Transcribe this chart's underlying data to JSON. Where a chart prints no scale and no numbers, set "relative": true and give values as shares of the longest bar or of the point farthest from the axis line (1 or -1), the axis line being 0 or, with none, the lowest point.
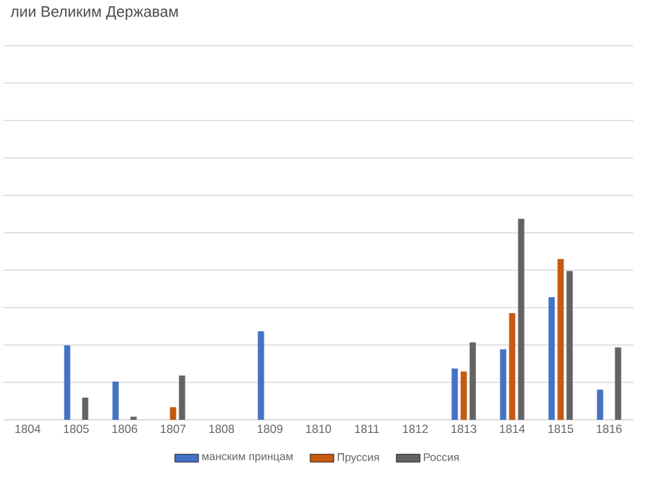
{
  "chart_data": {
    "type": "bar",
    "title": "лии Великим Державам",
    "categories": [
      "1804",
      "1805",
      "1806",
      "1807",
      "1808",
      "1809",
      "1810",
      "1811",
      "1812",
      "1813",
      "1814",
      "1815",
      "1816"
    ],
    "relative": true,
    "grid": "y",
    "legend": "bottom",
    "series": [
      {
        "name": "манским принцам",
        "color": "#4472c4",
        "values": [
          null,
          0.37,
          0.19,
          null,
          null,
          0.44,
          null,
          null,
          null,
          0.255,
          0.35,
          0.61,
          0.15
        ]
      },
      {
        "name": "Пруссия",
        "color": "#c55a11",
        "values": [
          null,
          null,
          null,
          0.063,
          null,
          null,
          null,
          null,
          null,
          0.24,
          0.53,
          0.8,
          null
        ]
      },
      {
        "name": "Россия",
        "color": "#636363",
        "values": [
          null,
          0.11,
          0.015,
          0.22,
          null,
          null,
          null,
          null,
          null,
          0.385,
          1,
          0.74,
          0.36
        ]
      }
    ]
  }
}
